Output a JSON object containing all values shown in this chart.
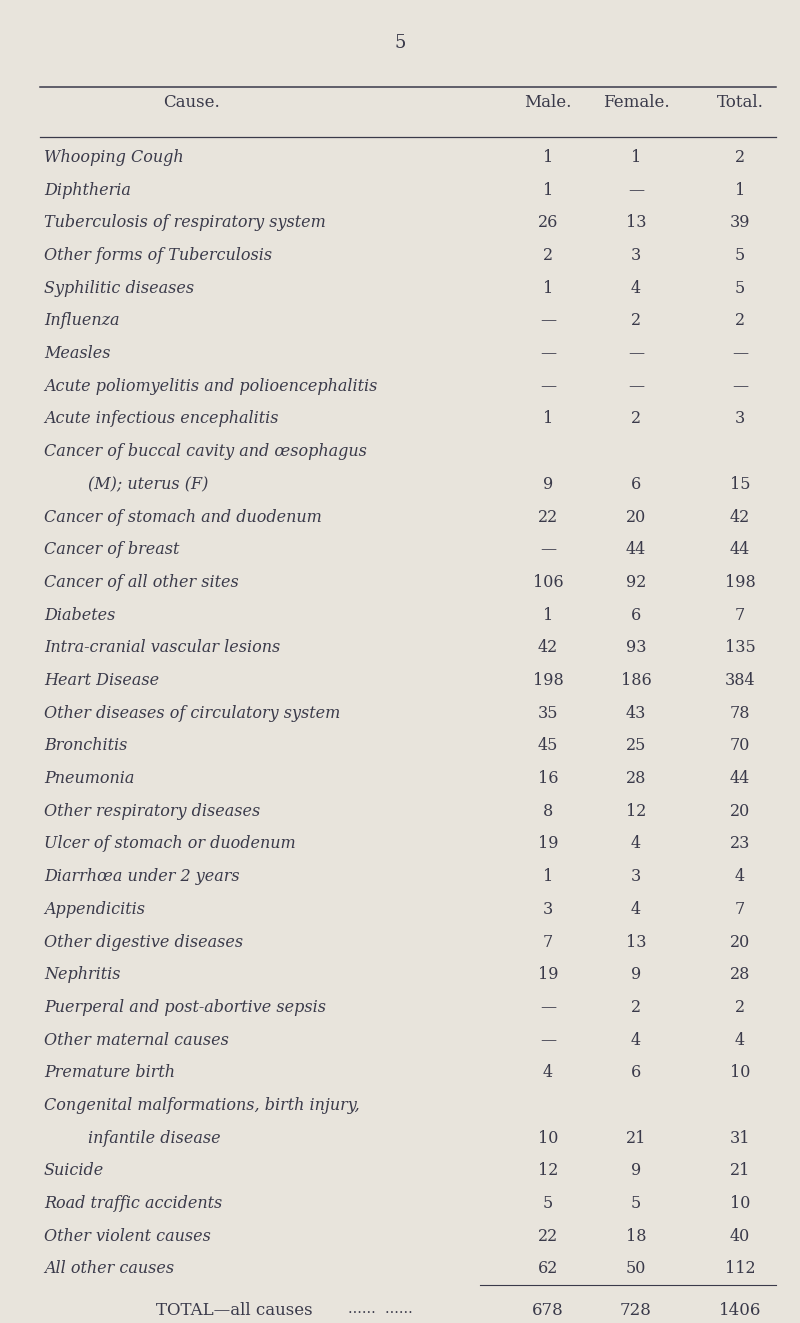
{
  "page_number": "5",
  "background_color": "#e8e4dc",
  "header": [
    "Cause.",
    "Male.",
    "Female.",
    "Total."
  ],
  "rows": [
    {
      "cause": "Whooping Cough",
      "dots": true,
      "male": "1",
      "female": "1",
      "total": "2"
    },
    {
      "cause": "Diphtheria",
      "dots": true,
      "male": "1",
      "female": "—",
      "total": "1"
    },
    {
      "cause": "Tuberculosis of respiratory system",
      "dots": true,
      "male": "26",
      "female": "13",
      "total": "39"
    },
    {
      "cause": "Other forms of Tuberculosis",
      "dots": true,
      "male": "2",
      "female": "3",
      "total": "5"
    },
    {
      "cause": "Syphilitic diseases",
      "dots": true,
      "male": "1",
      "female": "4",
      "total": "5"
    },
    {
      "cause": "Influenza",
      "dots": true,
      "male": "—",
      "female": "2",
      "total": "2"
    },
    {
      "cause": "Measles",
      "dots": true,
      "male": "—",
      "female": "—",
      "total": "—"
    },
    {
      "cause": "Acute poliomyelitis and polioencephalitis",
      "dots": false,
      "male": "—",
      "female": "—",
      "total": "—"
    },
    {
      "cause": "Acute infectious encephalitis",
      "dots": true,
      "male": "1",
      "female": "2",
      "total": "3"
    },
    {
      "cause": "Cancer of buccal cavity and œsophagus",
      "dots": false,
      "male": "",
      "female": "",
      "total": "",
      "continuation": true
    },
    {
      "cause": "    (M); uterus (F)",
      "dots": true,
      "male": "9",
      "female": "6",
      "total": "15"
    },
    {
      "cause": "Cancer of stomach and duodenum",
      "dots": true,
      "male": "22",
      "female": "20",
      "total": "42"
    },
    {
      "cause": "Cancer of breast",
      "dots": true,
      "male": "—",
      "female": "44",
      "total": "44"
    },
    {
      "cause": "Cancer of all other sites",
      "dots": true,
      "male": "106",
      "female": "92",
      "total": "198"
    },
    {
      "cause": "Diabetes",
      "dots": true,
      "male": "1",
      "female": "6",
      "total": "7"
    },
    {
      "cause": "Intra-cranial vascular lesions",
      "dots": true,
      "male": "42",
      "female": "93",
      "total": "135"
    },
    {
      "cause": "Heart Disease",
      "dots": true,
      "male": "198",
      "female": "186",
      "total": "384"
    },
    {
      "cause": "Other diseases of circulatory system",
      "dots": true,
      "male": "35",
      "female": "43",
      "total": "78"
    },
    {
      "cause": "Bronchitis",
      "dots": true,
      "male": "45",
      "female": "25",
      "total": "70"
    },
    {
      "cause": "Pneumonia",
      "dots": true,
      "male": "16",
      "female": "28",
      "total": "44"
    },
    {
      "cause": "Other respiratory diseases",
      "dots": true,
      "male": "8",
      "female": "12",
      "total": "20"
    },
    {
      "cause": "Ulcer of stomach or duodenum",
      "dots": true,
      "male": "19",
      "female": "4",
      "total": "23"
    },
    {
      "cause": "Diarrhœa under 2 years",
      "dots": true,
      "male": "1",
      "female": "3",
      "total": "4"
    },
    {
      "cause": "Appendicitis",
      "dots": true,
      "male": "3",
      "female": "4",
      "total": "7"
    },
    {
      "cause": "Other digestive diseases",
      "dots": true,
      "male": "7",
      "female": "13",
      "total": "20"
    },
    {
      "cause": "Nephritis",
      "dots": true,
      "male": "19",
      "female": "9",
      "total": "28"
    },
    {
      "cause": "Puerperal and post-abortive sepsis",
      "dots": true,
      "male": "—",
      "female": "2",
      "total": "2"
    },
    {
      "cause": "Other maternal causes",
      "dots": true,
      "male": "—",
      "female": "4",
      "total": "4"
    },
    {
      "cause": "Premature birth",
      "dots": true,
      "male": "4",
      "female": "6",
      "total": "10"
    },
    {
      "cause": "Congenital malformations, birth injury,",
      "dots": false,
      "male": "",
      "female": "",
      "total": "",
      "continuation": true
    },
    {
      "cause": "    infantile disease",
      "dots": true,
      "male": "10",
      "female": "21",
      "total": "31"
    },
    {
      "cause": "Suicide",
      "dots": true,
      "male": "12",
      "female": "9",
      "total": "21"
    },
    {
      "cause": "Road traffic accidents",
      "dots": true,
      "male": "5",
      "female": "5",
      "total": "10"
    },
    {
      "cause": "Other violent causes",
      "dots": true,
      "male": "22",
      "female": "18",
      "total": "40"
    },
    {
      "cause": "All other causes",
      "dots": true,
      "male": "62",
      "female": "50",
      "total": "112"
    }
  ],
  "total_row": {
    "cause": "TOTAL—all causes",
    "dots": true,
    "male": "678",
    "female": "728",
    "total": "1406"
  },
  "text_color": "#3a3a4a",
  "font_size": 11.5,
  "header_font_size": 12,
  "title_font_size": 13
}
